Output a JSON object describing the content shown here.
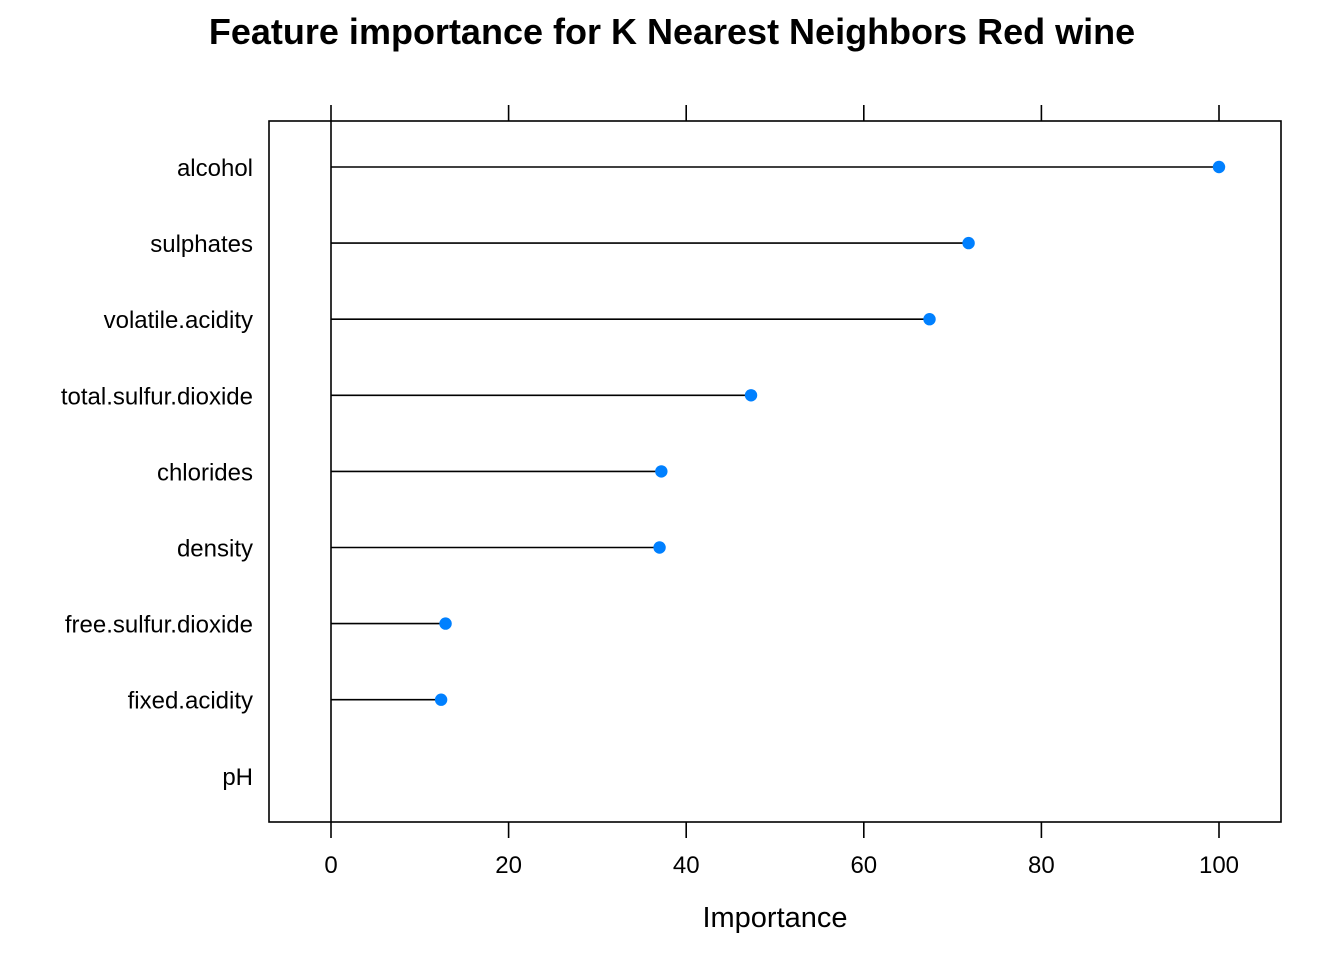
{
  "chart_data": {
    "type": "scatter",
    "title": "Feature importance for K Nearest Neighbors Red wine",
    "xlabel": "Importance",
    "ylabel": "",
    "xlim": [
      -7,
      107
    ],
    "x_ticks": [
      0,
      20,
      40,
      60,
      80,
      100
    ],
    "x_tick_labels": [
      "0",
      "20",
      "40",
      "60",
      "80",
      "100"
    ],
    "categories": [
      "alcohol",
      "sulphates",
      "volatile.acidity",
      "total.sulfur.dioxide",
      "chlorides",
      "density",
      "free.sulfur.dioxide",
      "fixed.acidity",
      "pH"
    ],
    "values": [
      100,
      71.8,
      67.4,
      47.3,
      37.2,
      37.0,
      12.9,
      12.4,
      0
    ],
    "stems_from": 0,
    "grid": false,
    "legend": "none",
    "colors": {
      "point": "#0080FF",
      "line": "#000000",
      "axis": "#000000"
    }
  }
}
